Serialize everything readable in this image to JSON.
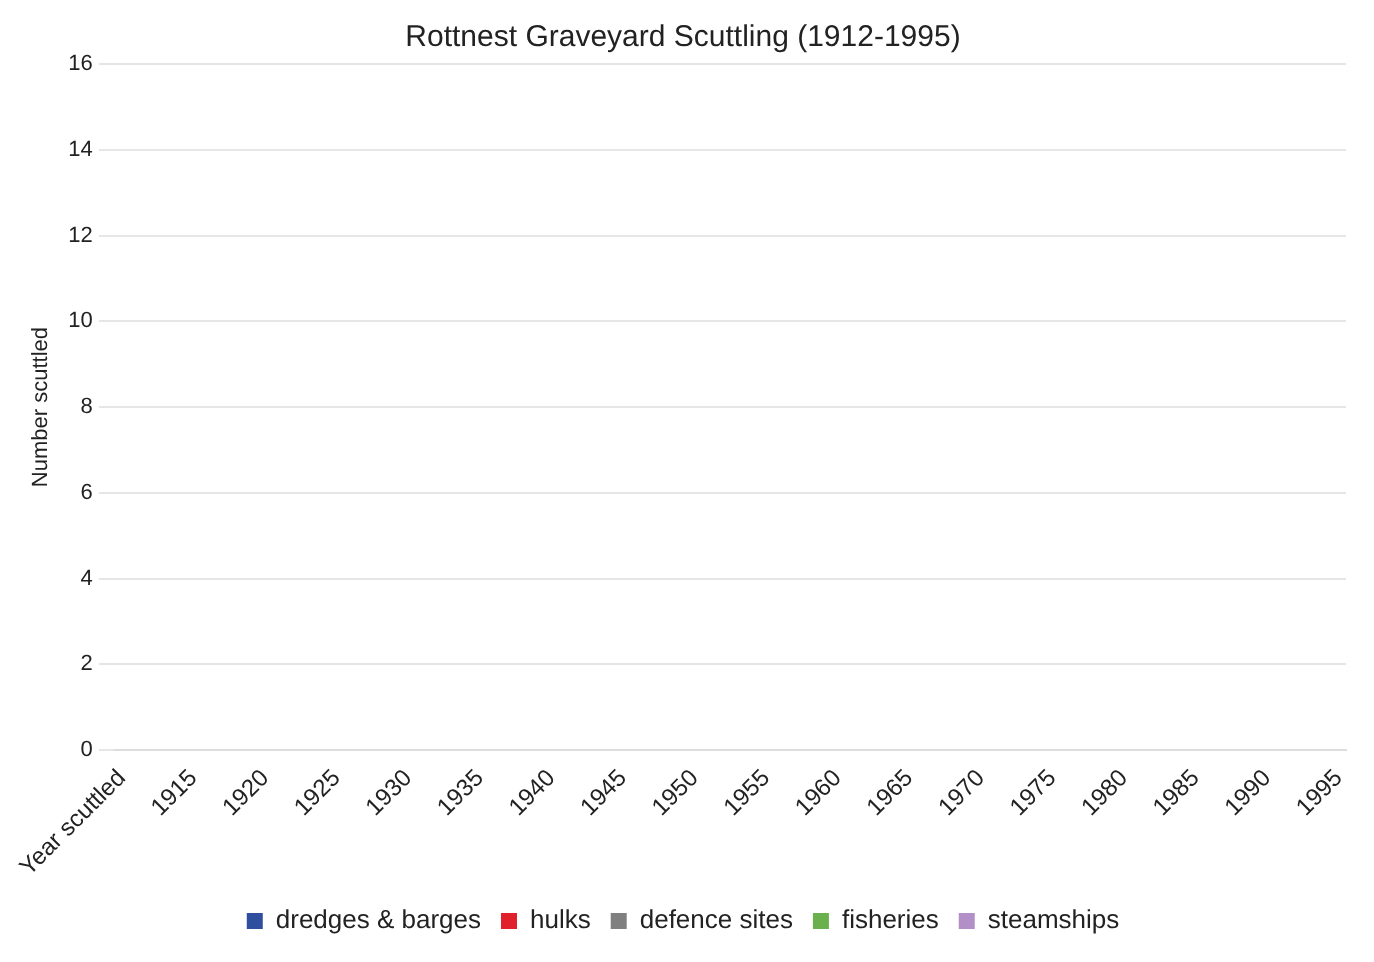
{
  "chart_data": {
    "type": "bar",
    "title": "Rottnest Graveyard Scuttling (1912-1995)",
    "ylabel": "Number scuttled",
    "categories": [
      "Year scuttled",
      null,
      null,
      null,
      null,
      "1915",
      null,
      null,
      null,
      null,
      "1920",
      null,
      null,
      null,
      null,
      "1925",
      null,
      null,
      null,
      null,
      "1930",
      null,
      null,
      null,
      null,
      "1935",
      null,
      null,
      null,
      null,
      "1940",
      null,
      null,
      null,
      null,
      "1945",
      null,
      null,
      null,
      null,
      "1950",
      null,
      null,
      null,
      null,
      "1955",
      null,
      null,
      null,
      null,
      "1960",
      null,
      null,
      null,
      null,
      "1965",
      null,
      null,
      null,
      null,
      "1970",
      null,
      null,
      null,
      null,
      "1975",
      null,
      null,
      null,
      null,
      "1980",
      null,
      null,
      null,
      null,
      "1985",
      null,
      null,
      null,
      null,
      "1990",
      null,
      null,
      null,
      null,
      "1995"
    ],
    "series": [
      {
        "name": "dredges & barges",
        "color": "#2f4f9e",
        "values": [
          0,
          0,
          0,
          0,
          0,
          0,
          0,
          0,
          0,
          0,
          0,
          0,
          0,
          0,
          0,
          0,
          0,
          0,
          0,
          0,
          0,
          0,
          0,
          0,
          0,
          0,
          0,
          0,
          0,
          0,
          0,
          0,
          0,
          0,
          0,
          0,
          0,
          0,
          0,
          0,
          0,
          0,
          0,
          0,
          0,
          0,
          0,
          0,
          0,
          0,
          0,
          0,
          0,
          0,
          0,
          0,
          0,
          0,
          0,
          0,
          0,
          0,
          0,
          0,
          0,
          0,
          0,
          0,
          0,
          0,
          0,
          0,
          0,
          0,
          0,
          0,
          0,
          0,
          0,
          0,
          0,
          0,
          0,
          0,
          0,
          0
        ]
      },
      {
        "name": "hulks",
        "color": "#e0202a",
        "values": [
          0,
          0,
          0,
          0,
          0,
          0,
          0,
          0,
          0,
          0,
          0,
          0,
          0,
          0,
          0,
          0,
          0,
          0,
          0,
          0,
          0,
          0,
          0,
          0,
          0,
          0,
          0,
          0,
          0,
          0,
          0,
          0,
          0,
          0,
          0,
          0,
          0,
          0,
          0,
          0,
          0,
          0,
          0,
          0,
          0,
          0,
          0,
          0,
          0,
          0,
          0,
          0,
          0,
          0,
          0,
          0,
          0,
          0,
          0,
          0,
          0,
          0,
          0,
          0,
          0,
          0,
          0,
          0,
          0,
          0,
          0,
          0,
          0,
          0,
          0,
          0,
          0,
          0,
          0,
          0,
          0,
          0,
          0,
          0,
          0,
          0
        ]
      },
      {
        "name": "defence sites",
        "color": "#7f7f7f",
        "values": [
          0,
          0,
          0,
          0,
          0,
          0,
          0,
          0,
          0,
          0,
          0,
          0,
          0,
          0,
          0,
          0,
          0,
          0,
          0,
          0,
          0,
          0,
          0,
          0,
          0,
          0,
          0,
          0,
          0,
          0,
          0,
          0,
          0,
          0,
          0,
          0,
          0,
          0,
          0,
          0,
          0,
          0,
          0,
          0,
          0,
          0,
          0,
          0,
          0,
          0,
          0,
          0,
          0,
          0,
          0,
          0,
          0,
          0,
          0,
          0,
          0,
          0,
          0,
          0,
          0,
          0,
          0,
          0,
          0,
          0,
          0,
          0,
          0,
          0,
          0,
          0,
          0,
          0,
          0,
          0,
          0,
          0,
          0,
          0,
          0,
          0
        ]
      },
      {
        "name": "fisheries",
        "color": "#6ab04c",
        "values": [
          0,
          0,
          0,
          0,
          0,
          0,
          0,
          0,
          0,
          0,
          0,
          0,
          0,
          0,
          0,
          0,
          0,
          0,
          0,
          0,
          0,
          0,
          0,
          0,
          0,
          0,
          0,
          0,
          0,
          0,
          0,
          0,
          0,
          0,
          0,
          0,
          0,
          0,
          0,
          0,
          0,
          0,
          0,
          0,
          0,
          0,
          0,
          0,
          0,
          0,
          0,
          0,
          0,
          0,
          0,
          0,
          0,
          0,
          0,
          0,
          0,
          0,
          0,
          0,
          0,
          0,
          0,
          0,
          0,
          0,
          0,
          0,
          0,
          0,
          0,
          0,
          0,
          0,
          0,
          0,
          0,
          0,
          0,
          0,
          0,
          0
        ]
      },
      {
        "name": "steamships",
        "color": "#b38fc7",
        "values": [
          0,
          0,
          0,
          0,
          0,
          0,
          0,
          0,
          0,
          0,
          0,
          0,
          0,
          0,
          0,
          0,
          0,
          0,
          0,
          0,
          0,
          0,
          0,
          0,
          0,
          0,
          0,
          0,
          0,
          0,
          0,
          0,
          0,
          0,
          0,
          0,
          0,
          0,
          0,
          0,
          0,
          0,
          0,
          0,
          0,
          0,
          0,
          0,
          0,
          0,
          0,
          0,
          0,
          0,
          0,
          0,
          0,
          0,
          0,
          0,
          0,
          0,
          0,
          0,
          0,
          0,
          0,
          0,
          0,
          0,
          0,
          0,
          0,
          0,
          0,
          0,
          0,
          0,
          0,
          0,
          0,
          0,
          0,
          0,
          0,
          0
        ]
      }
    ],
    "ylim": [
      0,
      16
    ],
    "yticks": [
      0,
      2,
      4,
      6,
      8,
      10,
      12,
      14,
      16
    ],
    "grid": "y",
    "legend": "bottom"
  }
}
